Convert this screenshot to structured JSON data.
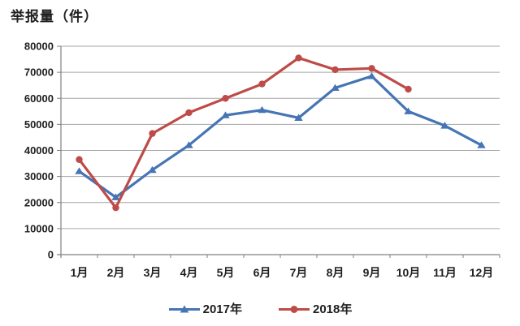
{
  "chart_data": {
    "type": "line",
    "title": "举报量（件）",
    "categories": [
      "1月",
      "2月",
      "3月",
      "4月",
      "5月",
      "6月",
      "7月",
      "8月",
      "9月",
      "10月",
      "11月",
      "12月"
    ],
    "yticks": [
      0,
      10000,
      20000,
      30000,
      40000,
      50000,
      60000,
      70000,
      80000
    ],
    "ylim": [
      0,
      80000
    ],
    "xlabel": "",
    "ylabel": "",
    "grid": true,
    "legend_position": "bottom",
    "colors": {
      "grid": "#A6A6A6",
      "axis": "#808080",
      "text": "#1F1F1F",
      "background": "#FFFFFF"
    },
    "series": [
      {
        "id": "2017",
        "name": "2017年",
        "color": "#4575B4",
        "marker": "triangle",
        "values": [
          32000,
          22000,
          32500,
          42000,
          53500,
          55500,
          52500,
          64000,
          68500,
          55000,
          49500,
          42000
        ]
      },
      {
        "id": "2018",
        "name": "2018年",
        "color": "#BE4B48",
        "marker": "circle",
        "values": [
          36500,
          18000,
          46500,
          54500,
          60000,
          65500,
          75500,
          71000,
          71500,
          63500,
          null,
          null
        ]
      }
    ]
  }
}
